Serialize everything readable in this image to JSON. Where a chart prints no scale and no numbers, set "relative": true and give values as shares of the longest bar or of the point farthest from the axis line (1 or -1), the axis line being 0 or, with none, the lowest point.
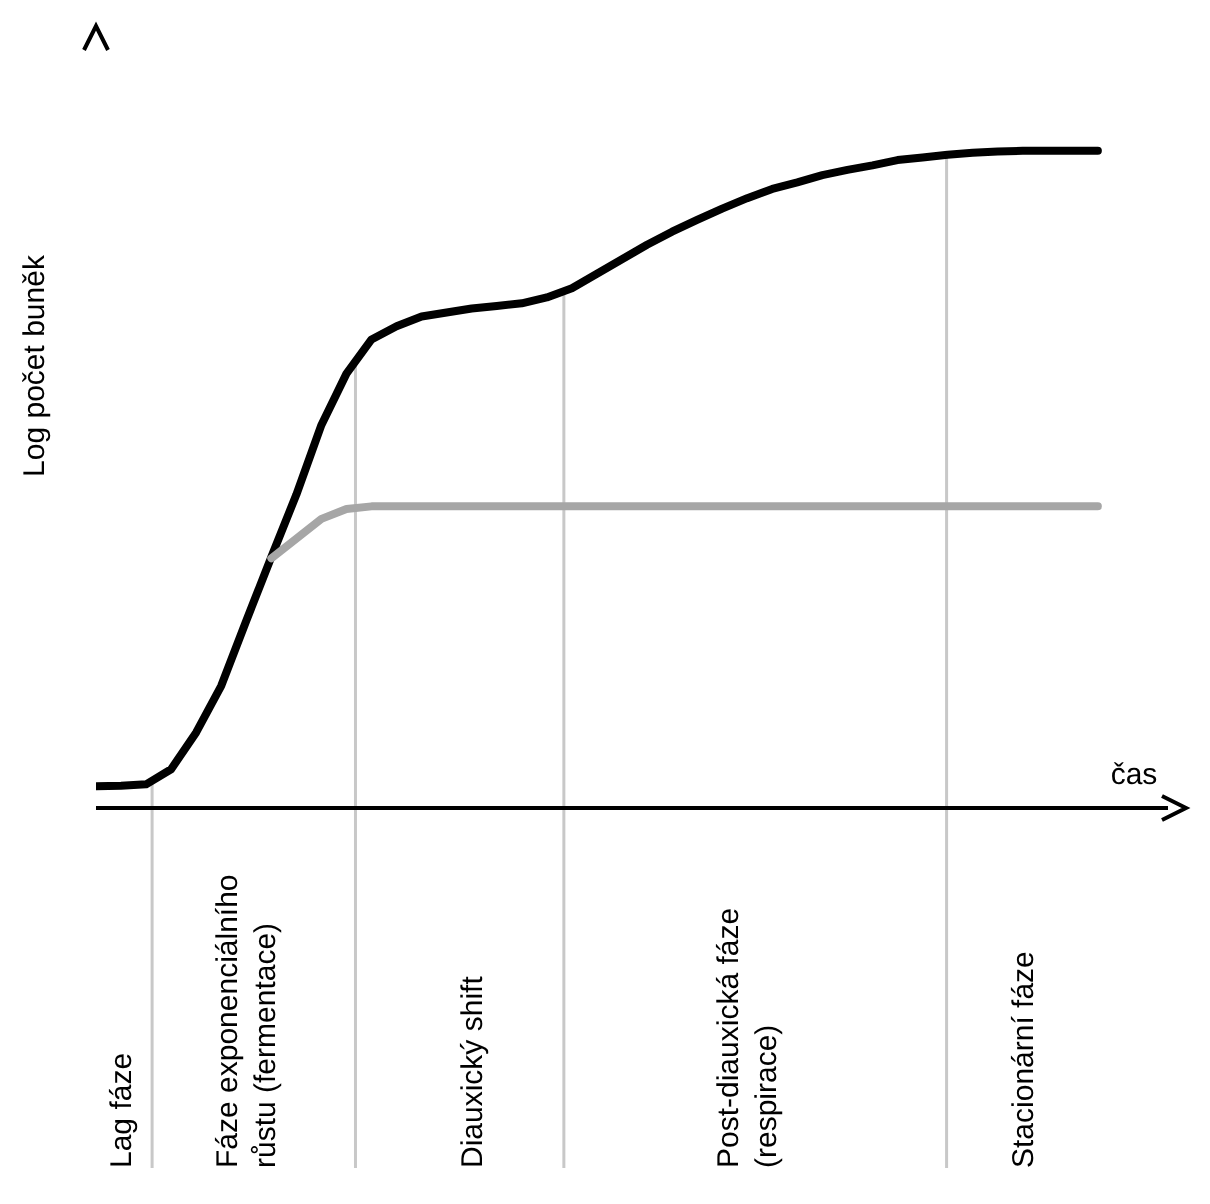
{
  "chart_data": {
    "type": "line",
    "relative": true,
    "xlabel": "čas",
    "ylabel": "Log počet buněk",
    "line_style": "solid",
    "marker": "none",
    "categories": [
      null,
      "Lag fáze",
      null,
      null,
      null,
      null,
      "Fáze exponenciálního růstu (fermentace)",
      null,
      null,
      null,
      null,
      null,
      null,
      null,
      null,
      "Diauxický shift",
      null,
      null,
      null,
      null,
      null,
      null,
      null,
      null,
      null,
      null,
      "Post-diauxická fáze (respirace)",
      null,
      null,
      null,
      null,
      null,
      null,
      null,
      null,
      null,
      null,
      "Stacionární fáze",
      null,
      null,
      null
    ],
    "series": [
      {
        "color": "#000000",
        "values": [
          0.033,
          0.034,
          0.036,
          0.059,
          0.115,
          0.186,
          0.285,
          0.382,
          0.477,
          0.583,
          0.661,
          0.713,
          0.733,
          0.748,
          0.754,
          0.76,
          0.764,
          0.768,
          0.777,
          0.791,
          0.813,
          0.835,
          0.857,
          0.877,
          0.895,
          0.912,
          0.928,
          0.942,
          0.952,
          0.963,
          0.971,
          0.978,
          0.986,
          0.99,
          0.994,
          0.997,
          0.999,
          1,
          1,
          1,
          1
        ]
      },
      {
        "color": "#a6a6a6",
        "values": [
          null,
          null,
          null,
          null,
          null,
          null,
          null,
          0.38,
          0.41,
          0.44,
          0.455,
          0.459,
          0.459,
          0.459,
          0.459,
          0.459,
          0.459,
          0.459,
          0.459,
          0.459,
          0.459,
          0.459,
          0.459,
          0.459,
          0.459,
          0.459,
          0.459,
          0.459,
          0.459,
          0.459,
          0.459,
          0.459,
          0.459,
          0.459,
          0.459,
          0.459,
          0.459,
          0.459,
          0.459,
          0.459,
          0.459
        ]
      }
    ]
  }
}
